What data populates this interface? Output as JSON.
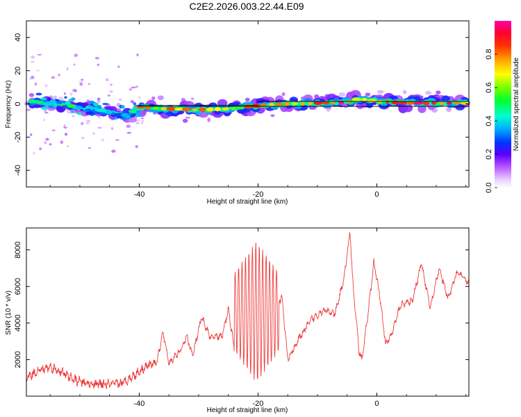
{
  "title": "C2E2.2026.003.22.44.E09",
  "chart_data": [
    {
      "type": "heatmap",
      "xlabel": "Height of straight line (km)",
      "ylabel": "Frequency (Hz)",
      "xlim": [
        -59,
        15.5
      ],
      "ylim": [
        -50,
        50
      ],
      "xticks": [
        -40,
        -20,
        0
      ],
      "yticks": [
        -40,
        -20,
        0,
        20,
        40
      ],
      "colorbar": {
        "label": "Normalized spectral amplitude",
        "range": [
          0,
          1
        ],
        "ticks": [
          0.0,
          0.2,
          0.4,
          0.6,
          0.8
        ],
        "tick_labels": [
          "0.0",
          "0.2",
          "0.4",
          "0.6",
          "0.8"
        ]
      },
      "ridge": [
        {
          "x": -58,
          "y": 1.5
        },
        {
          "x": -54,
          "y": 0
        },
        {
          "x": -50,
          "y": -2
        },
        {
          "x": -46,
          "y": -4
        },
        {
          "x": -42,
          "y": -7
        },
        {
          "x": -40,
          "y": -2
        },
        {
          "x": -35,
          "y": -3
        },
        {
          "x": -30,
          "y": -3.5
        },
        {
          "x": -25,
          "y": -3
        },
        {
          "x": -20,
          "y": -1
        },
        {
          "x": -15,
          "y": 0
        },
        {
          "x": -10,
          "y": 0.5
        },
        {
          "x": -5,
          "y": 1
        },
        {
          "x": -3,
          "y": 3
        },
        {
          "x": 0,
          "y": 1.5
        },
        {
          "x": 5,
          "y": 0.5
        },
        {
          "x": 10,
          "y": 0.5
        },
        {
          "x": 15,
          "y": 0.5
        }
      ]
    },
    {
      "type": "line",
      "xlabel": "Height of straight line (km)",
      "ylabel": "SNR (10 * v/v)",
      "xlim": [
        -59,
        15.5
      ],
      "ylim": [
        0,
        9200
      ],
      "xticks": [
        -40,
        -20,
        0
      ],
      "yticks": [
        2000,
        4000,
        6000,
        8000
      ],
      "series": [
        {
          "color": "#ee3b3b",
          "anchors": [
            {
              "x": -59,
              "y": 1000
            },
            {
              "x": -57,
              "y": 1400
            },
            {
              "x": -55,
              "y": 1600
            },
            {
              "x": -53,
              "y": 1300
            },
            {
              "x": -51,
              "y": 900
            },
            {
              "x": -49,
              "y": 700
            },
            {
              "x": -47,
              "y": 650
            },
            {
              "x": -45,
              "y": 650
            },
            {
              "x": -43,
              "y": 700
            },
            {
              "x": -41,
              "y": 1100
            },
            {
              "x": -39,
              "y": 1600
            },
            {
              "x": -37,
              "y": 1900
            },
            {
              "x": -36,
              "y": 3500
            },
            {
              "x": -35,
              "y": 1800
            },
            {
              "x": -33,
              "y": 2500
            },
            {
              "x": -32,
              "y": 3300
            },
            {
              "x": -31,
              "y": 2200
            },
            {
              "x": -29.5,
              "y": 4300
            },
            {
              "x": -28,
              "y": 3200
            },
            {
              "x": -26,
              "y": 3300
            },
            {
              "x": -25,
              "y": 4800
            },
            {
              "x": -24,
              "y": 2600
            },
            {
              "x": -22,
              "y": 5400
            },
            {
              "x": -20,
              "y": 4500
            },
            {
              "x": -18,
              "y": 4000
            },
            {
              "x": -16,
              "y": 5500
            },
            {
              "x": -15,
              "y": 2000
            },
            {
              "x": -13,
              "y": 3200
            },
            {
              "x": -11,
              "y": 4200
            },
            {
              "x": -9,
              "y": 4700
            },
            {
              "x": -7,
              "y": 4500
            },
            {
              "x": -5.5,
              "y": 6500
            },
            {
              "x": -4.5,
              "y": 9000
            },
            {
              "x": -4,
              "y": 6000
            },
            {
              "x": -3,
              "y": 2500
            },
            {
              "x": -2.5,
              "y": 2000
            },
            {
              "x": -1.5,
              "y": 4500
            },
            {
              "x": -0.5,
              "y": 7300
            },
            {
              "x": 0.5,
              "y": 5500
            },
            {
              "x": 1.5,
              "y": 2800
            },
            {
              "x": 2.5,
              "y": 3400
            },
            {
              "x": 4,
              "y": 5000
            },
            {
              "x": 6,
              "y": 5200
            },
            {
              "x": 7.5,
              "y": 7300
            },
            {
              "x": 9,
              "y": 4800
            },
            {
              "x": 10.5,
              "y": 7000
            },
            {
              "x": 12,
              "y": 5300
            },
            {
              "x": 13.5,
              "y": 6800
            },
            {
              "x": 15.5,
              "y": 6200
            }
          ],
          "oscillation": {
            "x_range": [
              -24,
              -16.5
            ],
            "low": 700,
            "high": 8500
          }
        }
      ]
    }
  ]
}
